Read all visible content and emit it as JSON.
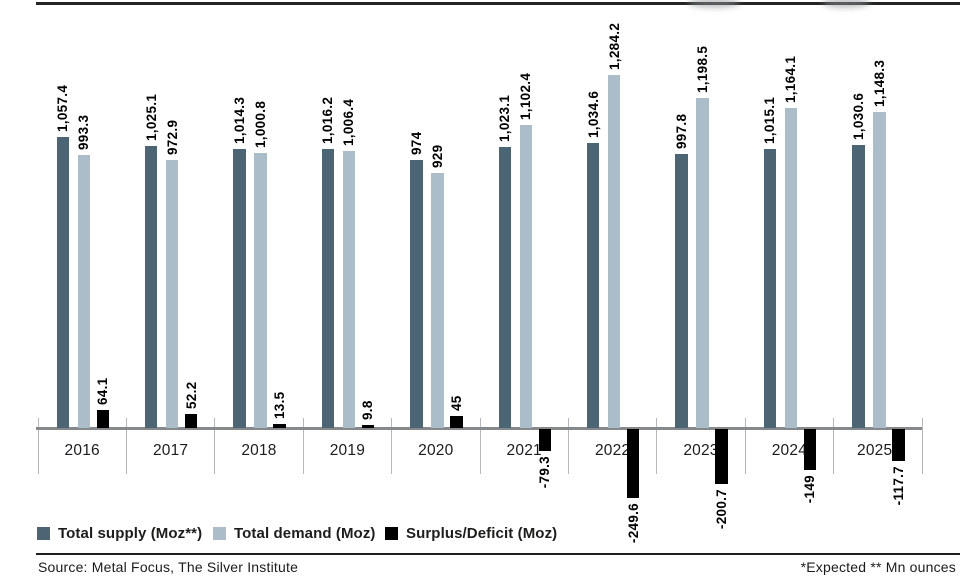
{
  "chart_data": {
    "type": "bar",
    "title": "",
    "xlabel": "",
    "ylabel": "",
    "categories": [
      "2016",
      "2017",
      "2018",
      "2019",
      "2020",
      "2021",
      "2022",
      "2023",
      "2024",
      "2025*"
    ],
    "series": [
      {
        "name": "Total supply (Moz**)",
        "color": "#4b6575",
        "values": [
          1057.4,
          1025.1,
          1014.3,
          1016.2,
          974,
          1023.1,
          1034.6,
          997.8,
          1015.1,
          1030.6
        ],
        "labels": [
          "1,057.4",
          "1,025.1",
          "1,014.3",
          "1,016.2",
          "974",
          "1,023.1",
          "1,034.6",
          "997.8",
          "1,015.1",
          "1,030.6"
        ]
      },
      {
        "name": "Total demand (Moz)",
        "color": "#aabdc9",
        "values": [
          993.3,
          972.9,
          1000.8,
          1006.4,
          929,
          1102.4,
          1284.2,
          1198.5,
          1164.1,
          1148.3
        ],
        "labels": [
          "993.3",
          "972.9",
          "1,000.8",
          "1,006.4",
          "929",
          "1,102.4",
          "1,284.2",
          "1,198.5",
          "1,164.1",
          "1,148.3"
        ]
      },
      {
        "name": "Surplus/Deficit (Moz)",
        "color": "#000000",
        "values": [
          64.1,
          52.2,
          13.5,
          9.8,
          45,
          -79.3,
          -249.6,
          -200.7,
          -149,
          -117.7
        ],
        "labels": [
          "64.1",
          "52.2",
          "13.5",
          "9.8",
          "45",
          "-79.3",
          "-249.6",
          "-200.7",
          "-149",
          "-117.7"
        ]
      }
    ],
    "legend_position": "bottom",
    "grid": false,
    "axis": {
      "baseline_color": "#85898b",
      "separator_color": "#b4b8ba",
      "zero_baseline": true
    }
  },
  "footer": {
    "source": "Source: Metal Focus, The Silver Institute",
    "note": "*Expected ** Mn ounces"
  }
}
